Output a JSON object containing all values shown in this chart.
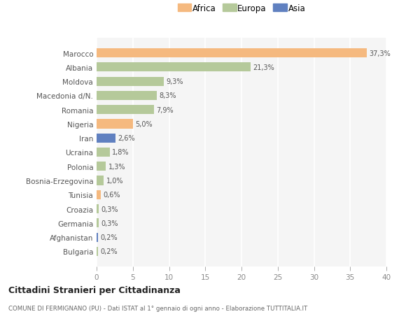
{
  "categories": [
    "Bulgaria",
    "Afghanistan",
    "Germania",
    "Croazia",
    "Tunisia",
    "Bosnia-Erzegovina",
    "Polonia",
    "Ucraina",
    "Iran",
    "Nigeria",
    "Romania",
    "Macedonia d/N.",
    "Moldova",
    "Albania",
    "Marocco"
  ],
  "values": [
    0.2,
    0.2,
    0.3,
    0.3,
    0.6,
    1.0,
    1.3,
    1.8,
    2.6,
    5.0,
    7.9,
    8.3,
    9.3,
    21.3,
    37.3
  ],
  "continents": [
    "Europa",
    "Asia",
    "Europa",
    "Europa",
    "Africa",
    "Europa",
    "Europa",
    "Europa",
    "Asia",
    "Africa",
    "Europa",
    "Europa",
    "Europa",
    "Europa",
    "Africa"
  ],
  "colors": {
    "Africa": "#f5b97f",
    "Europa": "#b5c99a",
    "Asia": "#6080c0"
  },
  "legend_labels": [
    "Africa",
    "Europa",
    "Asia"
  ],
  "title": "Cittadini Stranieri per Cittadinanza",
  "subtitle": "COMUNE DI FERMIGNANO (PU) - Dati ISTAT al 1° gennaio di ogni anno - Elaborazione TUTTITALIA.IT",
  "xlim": [
    0,
    40
  ],
  "xticks": [
    0,
    5,
    10,
    15,
    20,
    25,
    30,
    35,
    40
  ],
  "bg_color": "#ffffff",
  "plot_bg_color": "#f5f5f5",
  "grid_color": "#ffffff",
  "bar_height": 0.65
}
